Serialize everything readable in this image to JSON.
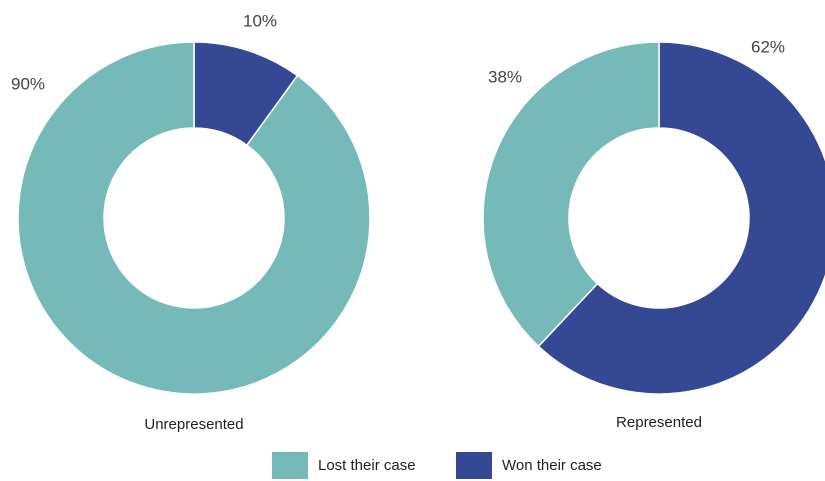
{
  "chart_data": [
    {
      "type": "donut",
      "title": "Unrepresented",
      "categories": [
        "Won their case",
        "Lost their case"
      ],
      "values": [
        10,
        90
      ],
      "value_labels": [
        "10%",
        "90%"
      ],
      "colors": [
        "#344893",
        "#76b9b9"
      ]
    },
    {
      "type": "donut",
      "title": "Represented",
      "categories": [
        "Won their case",
        "Lost their case"
      ],
      "values": [
        62,
        38
      ],
      "value_labels": [
        "62%",
        "38%"
      ],
      "colors": [
        "#344893",
        "#76b9b9"
      ]
    }
  ]
}
